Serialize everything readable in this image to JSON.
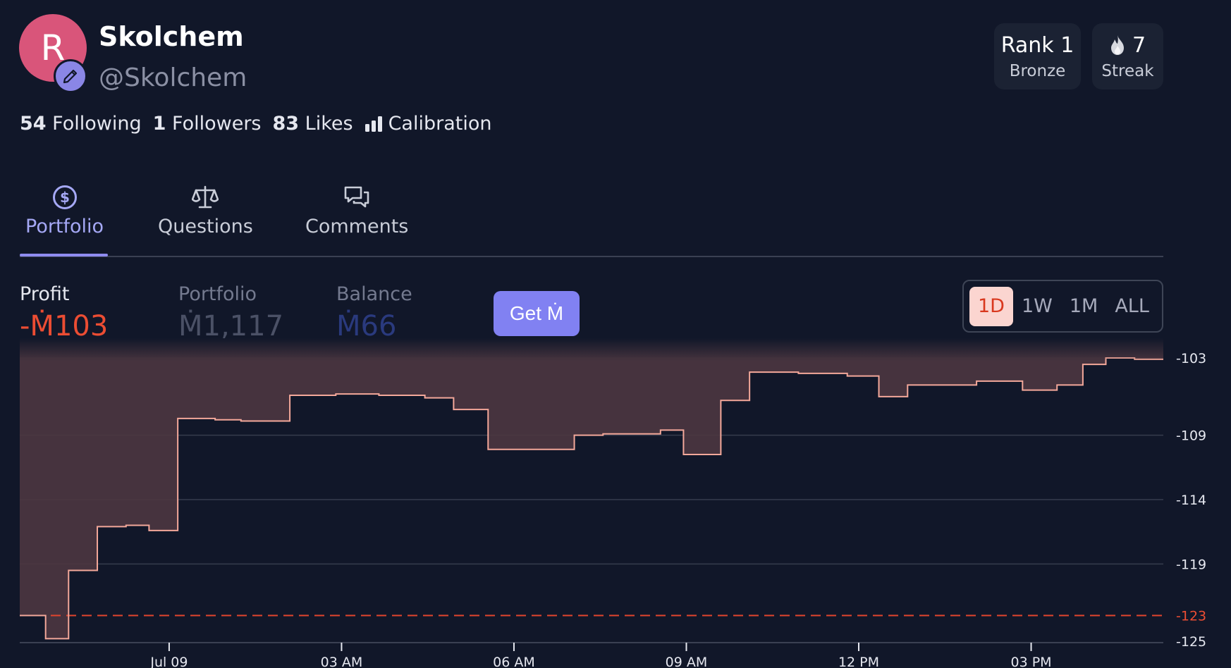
{
  "profile": {
    "avatar_letter": "R",
    "name": "Skolchem",
    "handle": "@Skolchem",
    "following_count": "54",
    "following_label": "Following",
    "followers_count": "1",
    "followers_label": "Followers",
    "likes_count": "83",
    "likes_label": "Likes",
    "calibration_label": "Calibration"
  },
  "badges": {
    "rank_title": "Rank 1",
    "rank_tier": "Bronze",
    "streak_count": "7",
    "streak_label": "Streak"
  },
  "tabs": [
    {
      "label": "Portfolio",
      "icon": "dollar-circle-icon",
      "active": true
    },
    {
      "label": "Questions",
      "icon": "scale-icon",
      "active": false
    },
    {
      "label": "Comments",
      "icon": "chat-bubbles-icon",
      "active": false
    }
  ],
  "metrics": {
    "profit_label": "Profit",
    "profit_value": "-Ṁ103",
    "portfolio_label": "Portfolio",
    "portfolio_value": "Ṁ1,117",
    "balance_label": "Balance",
    "balance_value": "Ṁ66",
    "get_button": "Get Ṁ"
  },
  "range_options": [
    "1D",
    "1W",
    "1M",
    "ALL"
  ],
  "range_selected": "1D",
  "colors": {
    "background": "#111729",
    "accent": "#8181f2",
    "loss": "#ec4d33",
    "line": "#f4a89a",
    "area": "#4d3640"
  },
  "chart_data": {
    "type": "area",
    "step": "after",
    "x_ticks": [
      "Jul 09",
      "03 AM",
      "06 AM",
      "09 AM",
      "12 PM",
      "03 PM"
    ],
    "x_tick_hours": [
      0,
      3,
      6,
      9,
      12,
      15
    ],
    "xlim_hours": [
      -2.6,
      17.3
    ],
    "y_ticks": [
      -103,
      -109,
      -114,
      -119,
      -125
    ],
    "reference_line": {
      "value": -123,
      "label": "-123"
    },
    "ylim": [
      -125,
      -103
    ],
    "series": [
      {
        "x_hours": [
          -2.6,
          -2.15,
          -1.75,
          -1.25,
          -0.75,
          -0.35,
          0.15,
          0.8,
          1.25,
          2.1,
          2.9,
          3.65,
          4.45,
          4.95,
          5.55,
          7.05,
          7.55,
          8.55,
          8.95,
          9.6,
          10.1,
          10.95,
          11.8,
          12.35,
          12.85,
          14.05,
          14.85,
          15.45,
          15.9,
          16.3,
          16.8,
          17.3
        ],
        "values": [
          -123,
          -124.8,
          -119.5,
          -116.1,
          -116.0,
          -116.4,
          -107.7,
          -107.8,
          -107.9,
          -105.9,
          -105.8,
          -105.9,
          -106.1,
          -107.0,
          -110.1,
          -109.0,
          -108.9,
          -108.6,
          -110.5,
          -106.3,
          -104.1,
          -104.2,
          -104.4,
          -106.0,
          -105.1,
          -104.8,
          -105.5,
          -105.1,
          -103.5,
          -103.0,
          -103.1,
          -103.1
        ]
      }
    ]
  }
}
